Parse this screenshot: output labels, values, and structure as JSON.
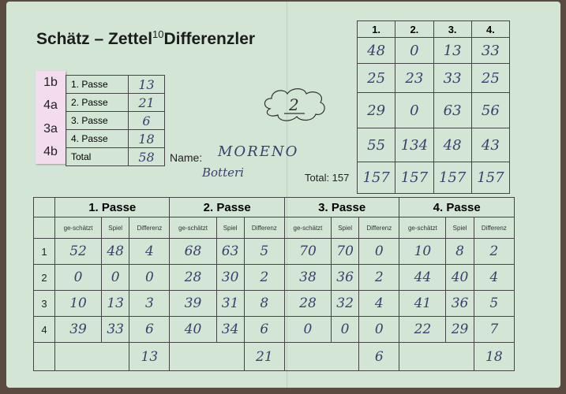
{
  "header": {
    "title_left": "Schätz – Zettel",
    "superscript": "10",
    "title_right": "Differenzler"
  },
  "summary": {
    "labels": [
      "1b",
      "4a",
      "3a",
      "4b"
    ],
    "rows": [
      {
        "label": "1. Passe",
        "value": "13"
      },
      {
        "label": "2. Passe",
        "value": "21"
      },
      {
        "label": "3. Passe",
        "value": "6"
      },
      {
        "label": "4. Passe",
        "value": "18"
      },
      {
        "label": "Total",
        "value": "58"
      }
    ]
  },
  "place": "2",
  "player": {
    "name_label": "Name:",
    "first": "MORENO",
    "last": "Botteri"
  },
  "total_label": "Total: 157",
  "rounds": {
    "headers": [
      "1.",
      "2.",
      "3.",
      "4."
    ],
    "rows": [
      [
        "48",
        "0",
        "13",
        "33"
      ],
      [
        "25",
        "23",
        "33",
        "25"
      ],
      [
        "29",
        "0",
        "63",
        "56"
      ],
      [
        "55",
        "134",
        "48",
        "43"
      ],
      [
        "157",
        "157",
        "157",
        "157"
      ]
    ]
  },
  "passes": {
    "titles": [
      "1. Passe",
      "2. Passe",
      "3. Passe",
      "4. Passe"
    ],
    "subheaders": [
      "ge-schätzt",
      "Spiel",
      "Differenz"
    ],
    "row_numbers": [
      "1",
      "2",
      "3",
      "4"
    ],
    "rows": [
      [
        "52",
        "48",
        "4",
        "68",
        "63",
        "5",
        "70",
        "70",
        "0",
        "10",
        "8",
        "2"
      ],
      [
        "0",
        "0",
        "0",
        "28",
        "30",
        "2",
        "38",
        "36",
        "2",
        "44",
        "40",
        "4"
      ],
      [
        "10",
        "13",
        "3",
        "39",
        "31",
        "8",
        "28",
        "32",
        "4",
        "41",
        "36",
        "5"
      ],
      [
        "39",
        "33",
        "6",
        "40",
        "34",
        "6",
        "0",
        "0",
        "0",
        "22",
        "29",
        "7"
      ]
    ],
    "totals": [
      "13",
      "21",
      "6",
      "18"
    ]
  }
}
